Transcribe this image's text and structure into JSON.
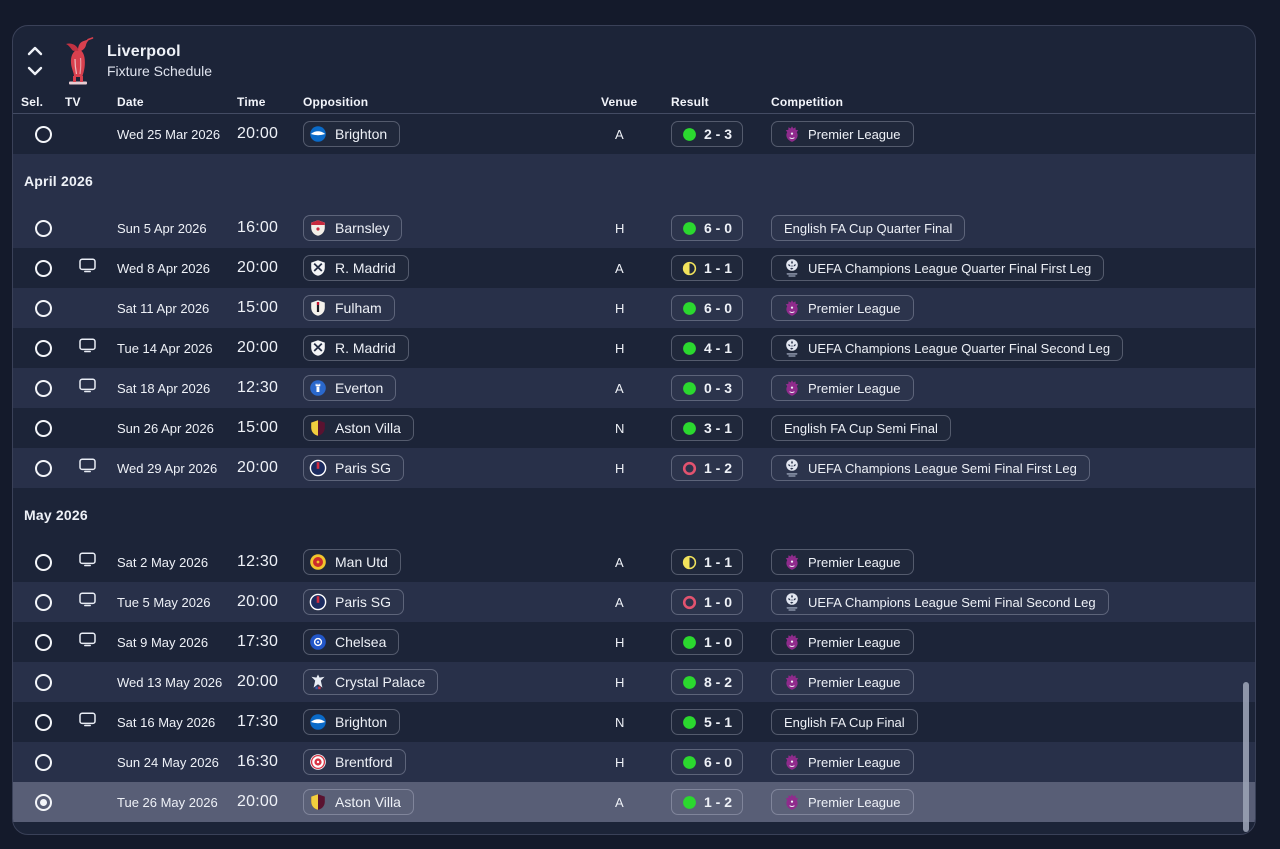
{
  "header": {
    "team": "Liverpool",
    "subtitle": "Fixture Schedule"
  },
  "columns": {
    "sel": "Sel.",
    "tv": "TV",
    "date": "Date",
    "time": "Time",
    "opposition": "Opposition",
    "venue": "Venue",
    "result": "Result",
    "competition": "Competition"
  },
  "colors": {
    "page_bg": "#141a2b",
    "panel_bg": "#1c2438",
    "panel_border": "#3a4158",
    "row_dark": "#1c2438",
    "row_light": "#283049",
    "row_selected": "#585e76",
    "divider": "#434b63",
    "text": "#eef1f7",
    "text_dim": "#dfe3ee",
    "win": "#2bd82f",
    "draw": "#f2e35c",
    "loss": "#e2536f",
    "scrollbar": "#99a1b4"
  },
  "schedule": [
    {
      "type": "fixture",
      "stripe": "dark",
      "selected": false,
      "tv": false,
      "date": "Wed 25 Mar 2026",
      "time": "20:00",
      "opposition": "Brighton",
      "crest": "brighton",
      "venue": "A",
      "outcome": "win",
      "score": "2 - 3",
      "competition": "Premier League",
      "competition_icon": "premier-league"
    },
    {
      "type": "month",
      "label": "April 2026",
      "stripe": "light"
    },
    {
      "type": "fixture",
      "stripe": "light",
      "selected": false,
      "tv": false,
      "date": "Sun 5 Apr 2026",
      "time": "16:00",
      "opposition": "Barnsley",
      "crest": "barnsley",
      "venue": "H",
      "outcome": "win",
      "score": "6 - 0",
      "competition": "English FA Cup Quarter Final",
      "competition_icon": "none"
    },
    {
      "type": "fixture",
      "stripe": "dark",
      "selected": false,
      "tv": true,
      "date": "Wed 8 Apr 2026",
      "time": "20:00",
      "opposition": "R. Madrid",
      "crest": "r-madrid",
      "venue": "A",
      "outcome": "draw",
      "score": "1 - 1",
      "competition": "UEFA Champions League Quarter Final First Leg",
      "competition_icon": "champions-league"
    },
    {
      "type": "fixture",
      "stripe": "light",
      "selected": false,
      "tv": false,
      "date": "Sat 11 Apr 2026",
      "time": "15:00",
      "opposition": "Fulham",
      "crest": "fulham",
      "venue": "H",
      "outcome": "win",
      "score": "6 - 0",
      "competition": "Premier League",
      "competition_icon": "premier-league"
    },
    {
      "type": "fixture",
      "stripe": "dark",
      "selected": false,
      "tv": true,
      "date": "Tue 14 Apr 2026",
      "time": "20:00",
      "opposition": "R. Madrid",
      "crest": "r-madrid",
      "venue": "H",
      "outcome": "win",
      "score": "4 - 1",
      "competition": "UEFA Champions League Quarter Final Second Leg",
      "competition_icon": "champions-league"
    },
    {
      "type": "fixture",
      "stripe": "light",
      "selected": false,
      "tv": true,
      "date": "Sat 18 Apr 2026",
      "time": "12:30",
      "opposition": "Everton",
      "crest": "everton",
      "venue": "A",
      "outcome": "win",
      "score": "0 - 3",
      "competition": "Premier League",
      "competition_icon": "premier-league"
    },
    {
      "type": "fixture",
      "stripe": "dark",
      "selected": false,
      "tv": false,
      "date": "Sun 26 Apr 2026",
      "time": "15:00",
      "opposition": "Aston Villa",
      "crest": "aston-villa",
      "venue": "N",
      "outcome": "win",
      "score": "3 - 1",
      "competition": "English FA Cup Semi Final",
      "competition_icon": "none"
    },
    {
      "type": "fixture",
      "stripe": "light",
      "selected": false,
      "tv": true,
      "date": "Wed 29 Apr 2026",
      "time": "20:00",
      "opposition": "Paris SG",
      "crest": "paris-sg",
      "venue": "H",
      "outcome": "loss",
      "score": "1 - 2",
      "competition": "UEFA Champions League Semi Final First Leg",
      "competition_icon": "champions-league"
    },
    {
      "type": "month",
      "label": "May 2026",
      "stripe": "dark"
    },
    {
      "type": "fixture",
      "stripe": "dark",
      "selected": false,
      "tv": true,
      "date": "Sat 2 May 2026",
      "time": "12:30",
      "opposition": "Man Utd",
      "crest": "man-utd",
      "venue": "A",
      "outcome": "draw",
      "score": "1 - 1",
      "competition": "Premier League",
      "competition_icon": "premier-league"
    },
    {
      "type": "fixture",
      "stripe": "light",
      "selected": false,
      "tv": true,
      "date": "Tue 5 May 2026",
      "time": "20:00",
      "opposition": "Paris SG",
      "crest": "paris-sg",
      "venue": "A",
      "outcome": "loss",
      "score": "1 - 0",
      "competition": "UEFA Champions League Semi Final Second Leg",
      "competition_icon": "champions-league"
    },
    {
      "type": "fixture",
      "stripe": "dark",
      "selected": false,
      "tv": true,
      "date": "Sat 9 May 2026",
      "time": "17:30",
      "opposition": "Chelsea",
      "crest": "chelsea",
      "venue": "H",
      "outcome": "win",
      "score": "1 - 0",
      "competition": "Premier League",
      "competition_icon": "premier-league"
    },
    {
      "type": "fixture",
      "stripe": "light",
      "selected": false,
      "tv": false,
      "date": "Wed 13 May 2026",
      "time": "20:00",
      "opposition": "Crystal Palace",
      "crest": "crystal-palace",
      "venue": "H",
      "outcome": "win",
      "score": "8 - 2",
      "competition": "Premier League",
      "competition_icon": "premier-league"
    },
    {
      "type": "fixture",
      "stripe": "dark",
      "selected": false,
      "tv": true,
      "date": "Sat 16 May 2026",
      "time": "17:30",
      "opposition": "Brighton",
      "crest": "brighton",
      "venue": "N",
      "outcome": "win",
      "score": "5 - 1",
      "competition": "English FA Cup Final",
      "competition_icon": "none"
    },
    {
      "type": "fixture",
      "stripe": "light",
      "selected": false,
      "tv": false,
      "date": "Sun 24 May 2026",
      "time": "16:30",
      "opposition": "Brentford",
      "crest": "brentford",
      "venue": "H",
      "outcome": "win",
      "score": "6 - 0",
      "competition": "Premier League",
      "competition_icon": "premier-league"
    },
    {
      "type": "fixture",
      "stripe": "selected",
      "selected": true,
      "tv": false,
      "date": "Tue 26 May 2026",
      "time": "20:00",
      "opposition": "Aston Villa",
      "crest": "aston-villa",
      "venue": "A",
      "outcome": "win",
      "score": "1 - 2",
      "competition": "Premier League",
      "competition_icon": "premier-league"
    }
  ],
  "crests": {
    "brighton": {
      "shape": "circle-band",
      "bg": "#0a6ac8",
      "fg": "#ffffff"
    },
    "barnsley": {
      "shape": "shield",
      "bg": "#f3efe8",
      "fg": "#c82a3e"
    },
    "r-madrid": {
      "shape": "shield-saltire",
      "bg": "#f3f4f6",
      "fg": "#232c44"
    },
    "fulham": {
      "shape": "shield-stripe",
      "bg": "#f5f2ec",
      "fg": "#1c1c24",
      "accent": "#c8102e"
    },
    "everton": {
      "shape": "circle-tower",
      "bg": "#2a68cc",
      "fg": "#ffffff"
    },
    "aston-villa": {
      "shape": "shield-split",
      "bg": "#5a1230",
      "fg": "#f2cf3e"
    },
    "paris-sg": {
      "shape": "circle-stripe",
      "bg": "#1c2c60",
      "fg": "#ffffff",
      "accent": "#d22c40"
    },
    "man-utd": {
      "shape": "circle-ring",
      "bg": "#f2c52c",
      "fg": "#cc2c2c"
    },
    "chelsea": {
      "shape": "circle-center",
      "bg": "#2256c8",
      "fg": "#ffffff"
    },
    "crystal-palace": {
      "shape": "eagle",
      "bg": "#e8ecf4",
      "fg": "#3858a8",
      "accent": "#c83c50"
    },
    "brentford": {
      "shape": "roundel",
      "bg": "#ffffff",
      "fg": "#d83444"
    }
  },
  "competition_icons": {
    "premier-league": {
      "color": "#8f2b8c"
    },
    "champions-league": {
      "color": "#e2e6f0"
    }
  }
}
